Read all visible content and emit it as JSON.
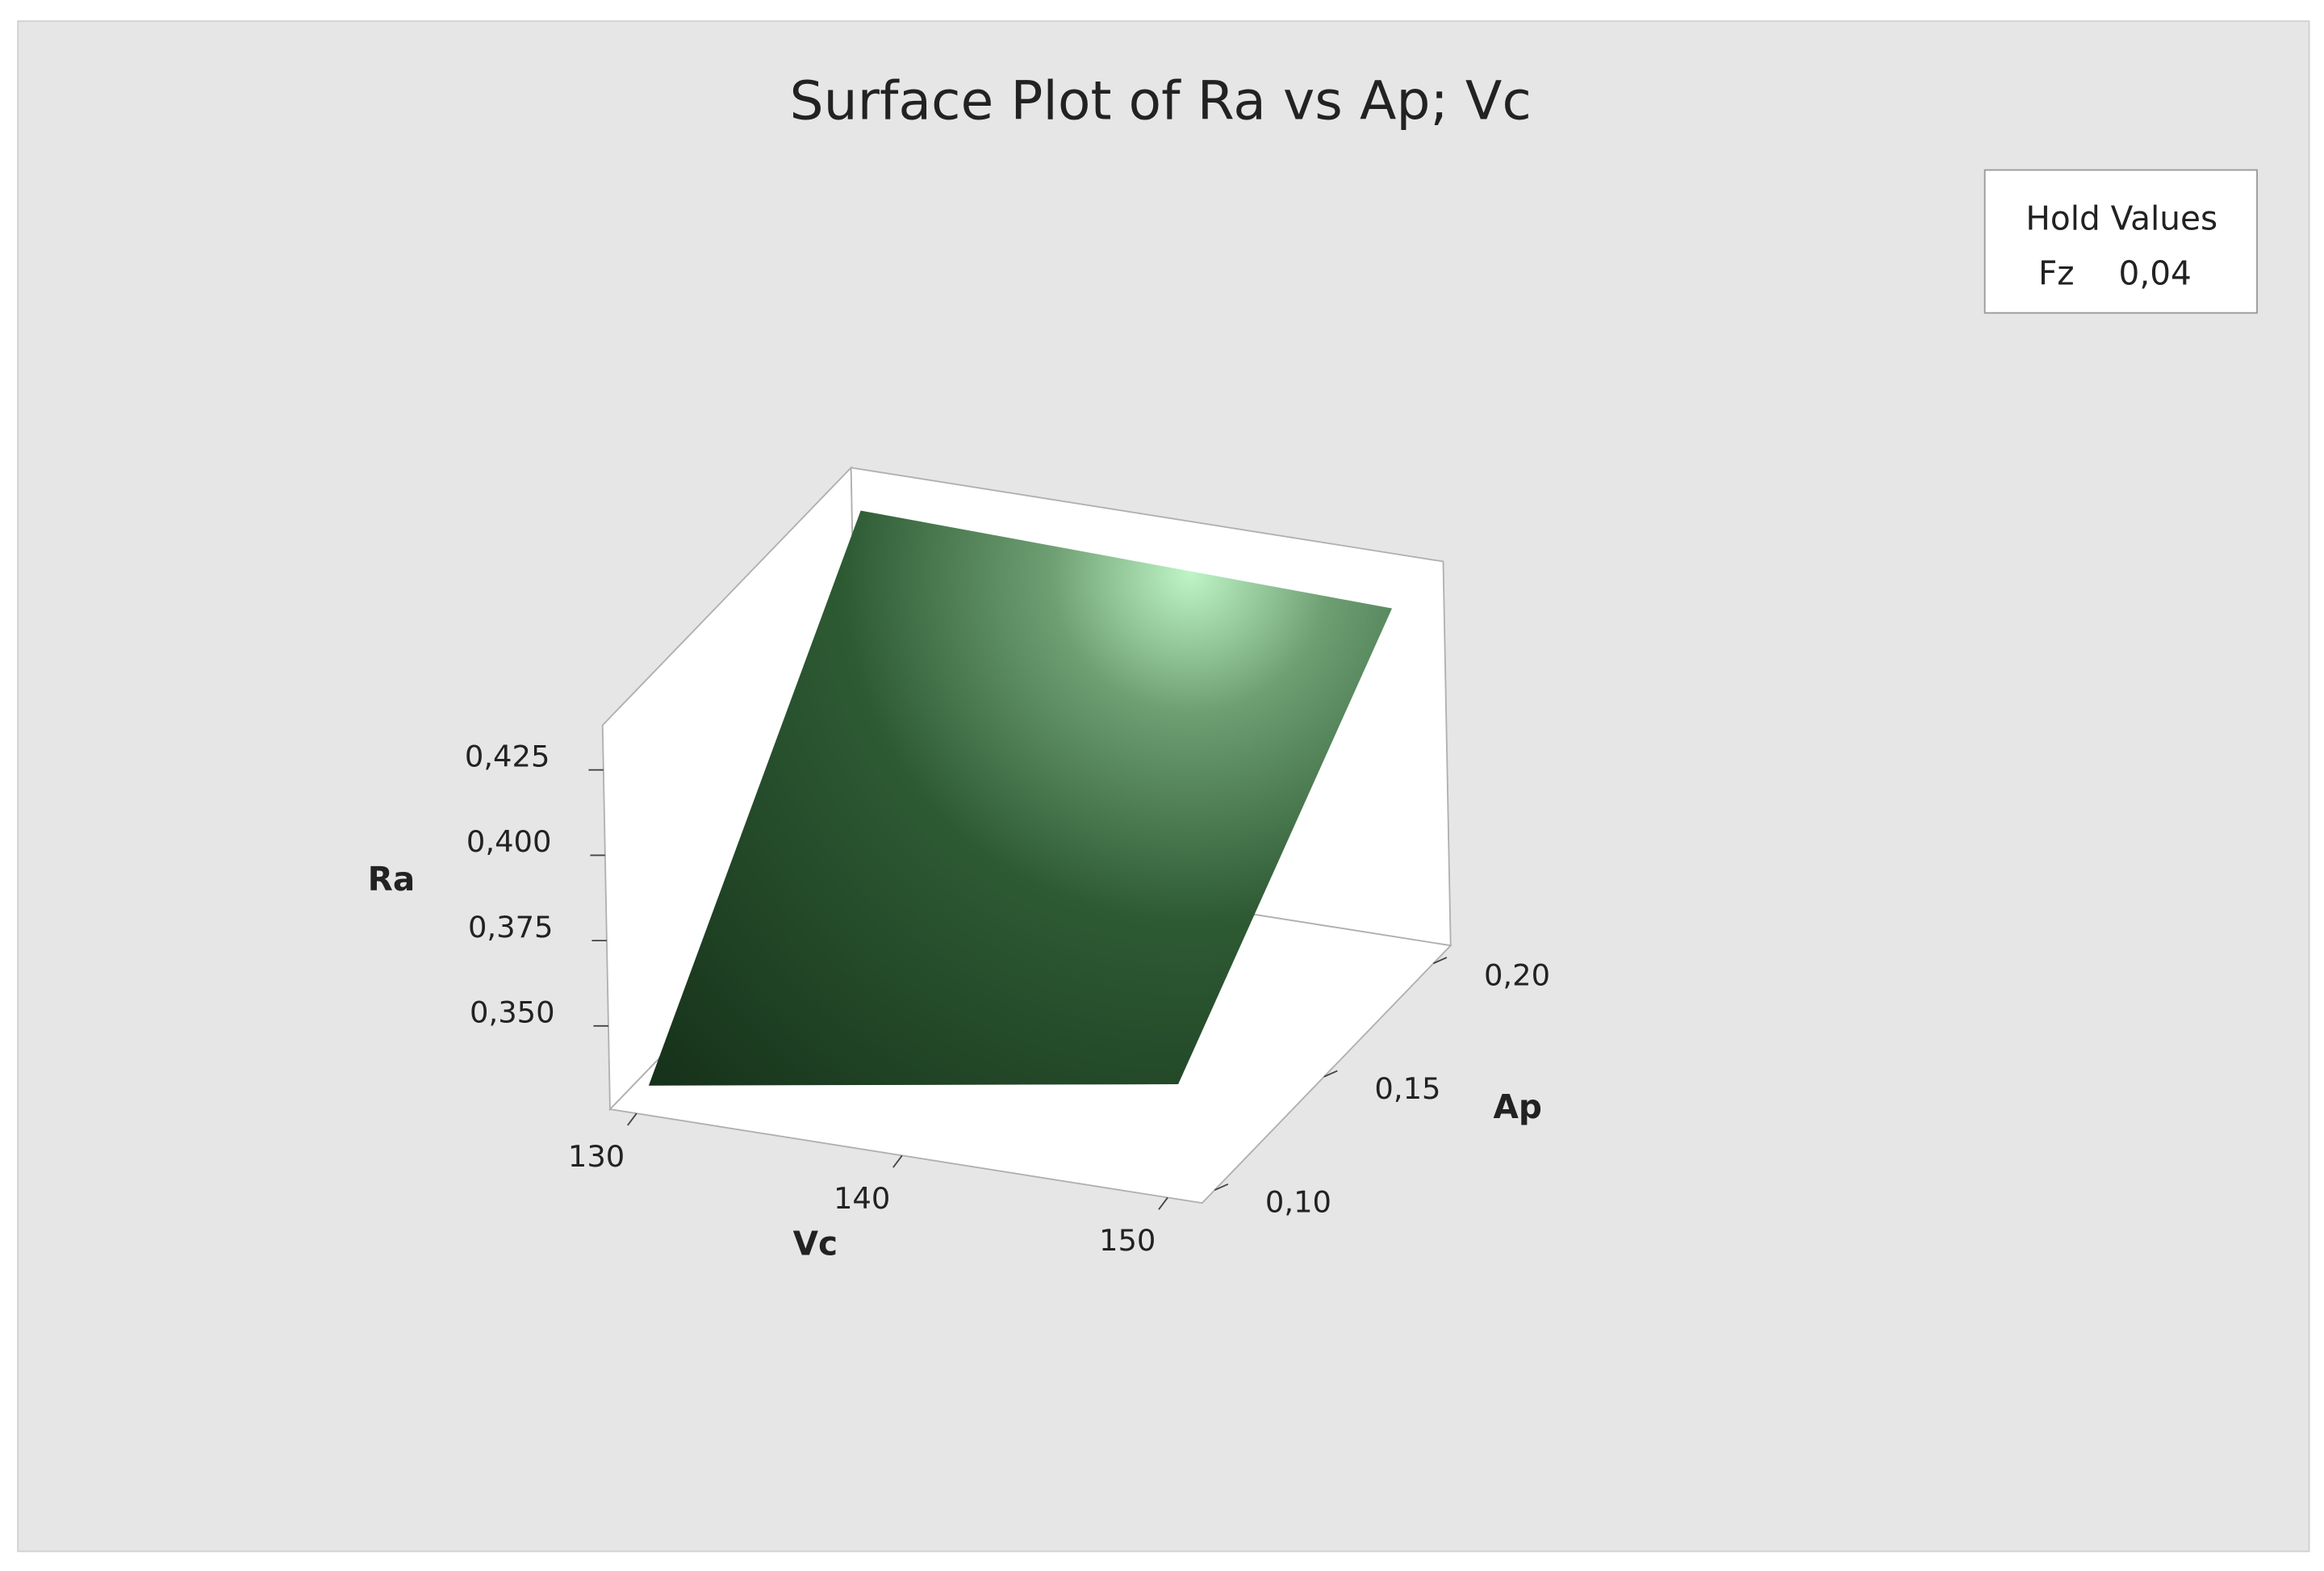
{
  "chart_data": {
    "type": "surface",
    "title": "Surface Plot of Ra vs Ap; Vc",
    "xlabel": "Vc",
    "ylabel": "Ap",
    "zlabel": "Ra",
    "x": [
      130,
      150
    ],
    "y": [
      0.1,
      0.2
    ],
    "z": [
      [
        0.33,
        0.355
      ],
      [
        0.432,
        0.428
      ]
    ],
    "xlim": [
      129,
      151.3
    ],
    "ylim": [
      0.0943,
      0.2079
    ],
    "zlim": [
      0.3256,
      0.4381
    ],
    "xticks": [
      130,
      140,
      150
    ],
    "yticks": [
      {
        "value": 0.1,
        "label": "0,10"
      },
      {
        "value": 0.15,
        "label": "0,15"
      },
      {
        "value": 0.2,
        "label": "0,20"
      }
    ],
    "zticks": [
      {
        "value": 0.35,
        "label": "0,350"
      },
      {
        "value": 0.375,
        "label": "0,375"
      },
      {
        "value": 0.4,
        "label": "0,400"
      },
      {
        "value": 0.425,
        "label": "0,425"
      }
    ],
    "color": "#2a5230",
    "hold_values": {
      "title": "Hold Values",
      "name": "Fz",
      "value": 0.04,
      "label": "0,04"
    }
  }
}
